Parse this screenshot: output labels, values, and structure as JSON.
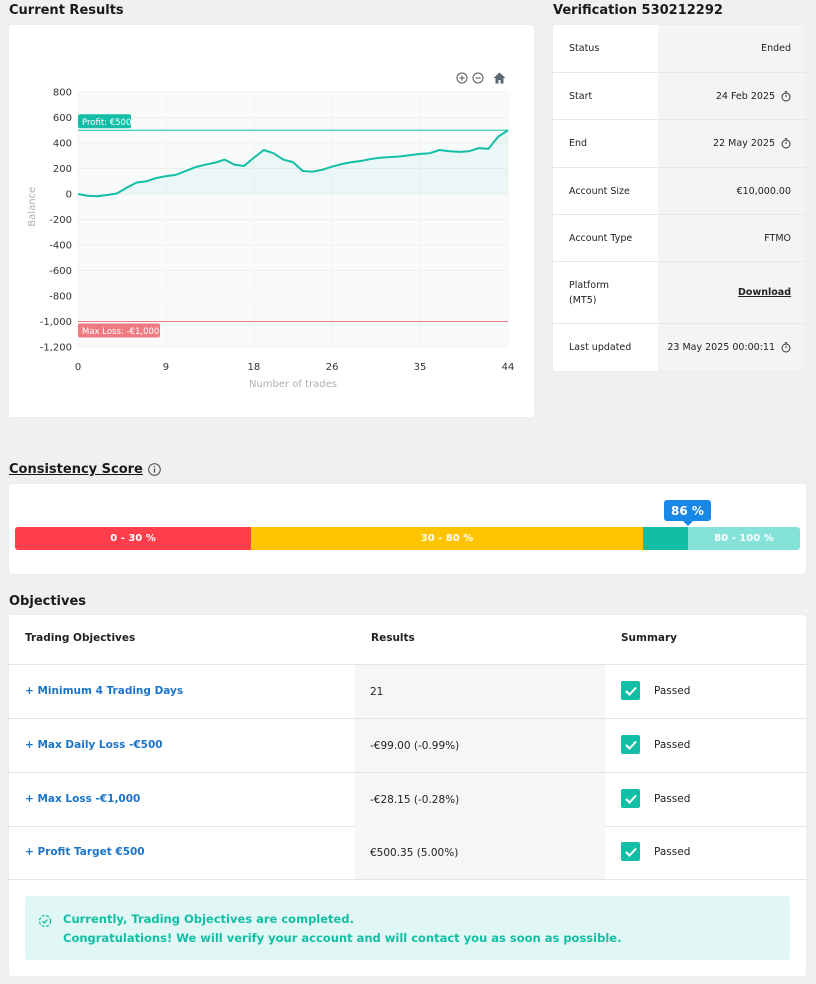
{
  "current_results": {
    "title": "Current Results"
  },
  "chart_data": {
    "type": "line",
    "x": [
      0,
      1,
      2,
      3,
      4,
      5,
      6,
      7,
      8,
      9,
      10,
      11,
      12,
      13,
      14,
      15,
      16,
      17,
      18,
      19,
      20,
      21,
      22,
      23,
      24,
      25,
      26,
      27,
      28,
      29,
      30,
      31,
      32,
      33,
      34,
      35,
      36,
      37,
      38,
      39,
      40,
      41,
      42,
      43,
      44
    ],
    "values": [
      0,
      -15,
      -18,
      -8,
      5,
      50,
      90,
      100,
      125,
      140,
      150,
      180,
      210,
      230,
      245,
      270,
      230,
      220,
      285,
      345,
      320,
      270,
      250,
      180,
      175,
      190,
      215,
      235,
      250,
      260,
      275,
      285,
      290,
      295,
      305,
      315,
      320,
      345,
      335,
      330,
      335,
      360,
      355,
      450,
      500
    ],
    "xlabel": "Number of trades",
    "ylabel": "Balance",
    "xticks": [
      "0",
      "9",
      "18",
      "26",
      "35",
      "44"
    ],
    "yticks": [
      "800",
      "600",
      "400",
      "200",
      "0",
      "-200",
      "-400",
      "-600",
      "-800",
      "-1,000",
      "-1,200"
    ],
    "ylim": [
      -1200,
      800
    ],
    "xlim": [
      0,
      44
    ],
    "profit_line": {
      "value": 500,
      "label": "Profit: €500",
      "color": "#12bfa6"
    },
    "loss_line": {
      "value": -1000,
      "label": "Max Loss: -€1,000",
      "color": "#f07a82"
    },
    "line_color": "#12bfa6",
    "grid": true
  },
  "verification": {
    "title": "Verification 530212292",
    "rows": [
      {
        "label": "Status",
        "value": "Ended"
      },
      {
        "label": "Start",
        "value": "24 Feb 2025"
      },
      {
        "label": "End",
        "value": "22 May 2025"
      },
      {
        "label": "Account Size",
        "value": "€10,000.00"
      },
      {
        "label": "Account Type",
        "value": "FTMO"
      },
      {
        "label": "Platform",
        "label2": "(MT5)",
        "value": "Download"
      },
      {
        "label": "Last updated",
        "value": "23 May 2025 00:00:11"
      }
    ]
  },
  "consistency": {
    "title": "Consistency Score",
    "score": "86 %",
    "score_value": 86,
    "segments": [
      {
        "label": "0 - 30 %",
        "color": "#ff3d4b"
      },
      {
        "label": "30 - 80 %",
        "color": "#ffc400"
      },
      {
        "label": "80 - 100 %",
        "color": "#85e2d8",
        "highlight": "#12bfa6"
      }
    ]
  },
  "objectives": {
    "title": "Objectives",
    "headers": {
      "objective": "Trading Objectives",
      "results": "Results",
      "summary": "Summary"
    },
    "rows": [
      {
        "name": "+ Minimum 4 Trading Days",
        "result": "21",
        "summary": "Passed"
      },
      {
        "name": "+ Max Daily Loss -€500",
        "result": "-€99.00 (-0.99%)",
        "summary": "Passed"
      },
      {
        "name": "+ Max Loss -€1,000",
        "result": "-€28.15 (-0.28%)",
        "summary": "Passed"
      },
      {
        "name": "+ Profit Target €500",
        "result": "€500.35 (5.00%)",
        "summary": "Passed"
      }
    ],
    "notice": {
      "line1": "Currently, Trading Objectives are completed.",
      "line2": "Congratulations! We will verify your account and will contact you as soon as possible."
    }
  }
}
